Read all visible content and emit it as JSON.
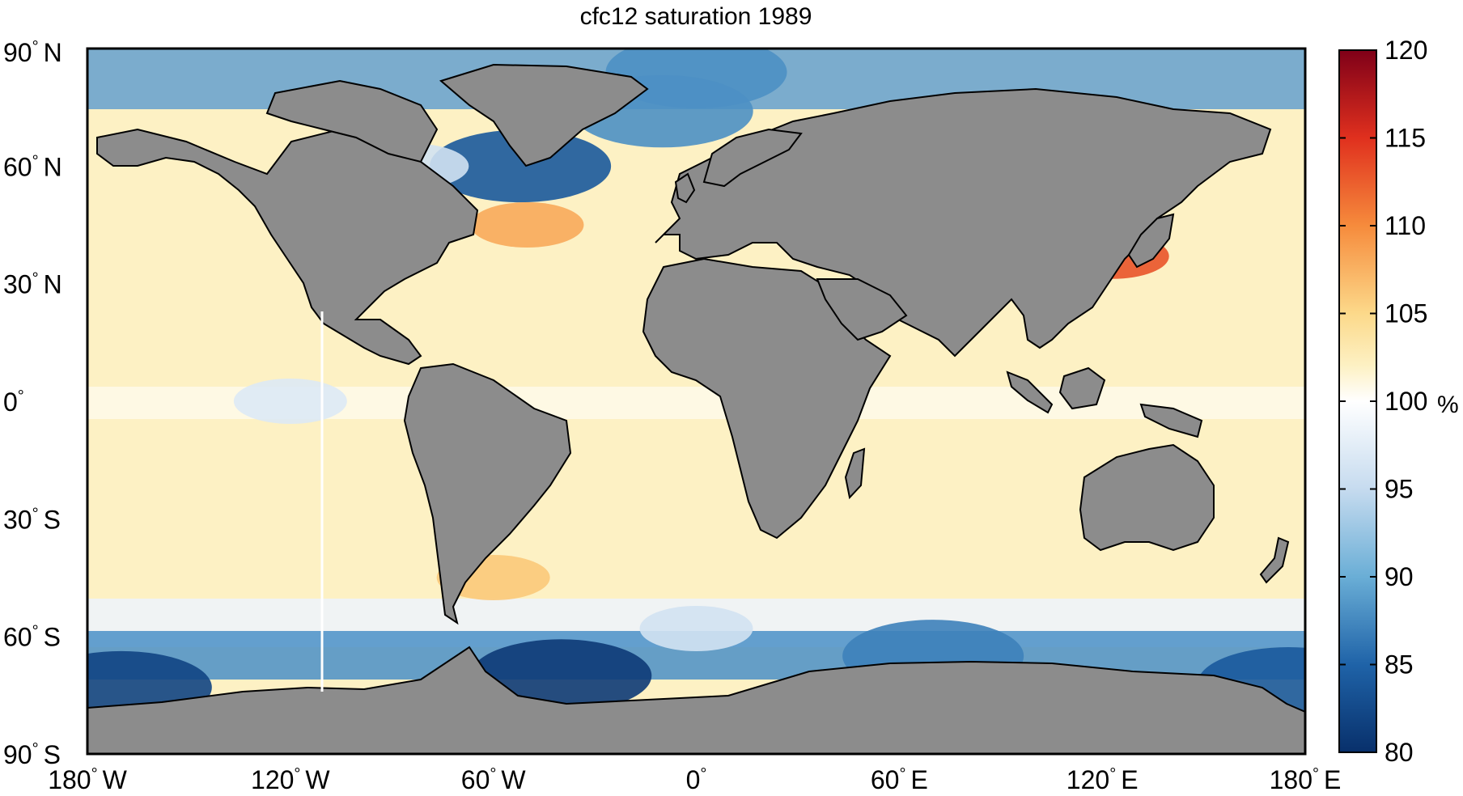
{
  "title": "cfc12 saturation 1989",
  "map": {
    "projection": "equirectangular",
    "lon_range": [
      -180,
      180
    ],
    "lat_range": [
      -90,
      90
    ],
    "variable": "cfc12 saturation",
    "year": "1989",
    "land_color": "#8c8c8c",
    "coastline_color": "#000000"
  },
  "axes": {
    "y_ticks": [
      {
        "deg": "90",
        "hem": "N",
        "lat": 90
      },
      {
        "deg": "60",
        "hem": "N",
        "lat": 60
      },
      {
        "deg": "30",
        "hem": "N",
        "lat": 30
      },
      {
        "deg": "0",
        "hem": "",
        "lat": 0
      },
      {
        "deg": "30",
        "hem": "S",
        "lat": -30
      },
      {
        "deg": "60",
        "hem": "S",
        "lat": -60
      },
      {
        "deg": "90",
        "hem": "S",
        "lat": -90
      }
    ],
    "x_ticks": [
      {
        "deg": "180",
        "hem": "W",
        "lon": -180
      },
      {
        "deg": "120",
        "hem": "W",
        "lon": -120
      },
      {
        "deg": "60",
        "hem": "W",
        "lon": -60
      },
      {
        "deg": "0",
        "hem": "",
        "lon": 0
      },
      {
        "deg": "60",
        "hem": "E",
        "lon": 60
      },
      {
        "deg": "120",
        "hem": "E",
        "lon": 120
      },
      {
        "deg": "180",
        "hem": "E",
        "lon": 180
      }
    ],
    "degree_symbol": "°"
  },
  "colorbar": {
    "unit": "%",
    "min": 80,
    "max": 120,
    "ticks": [
      "80",
      "85",
      "90",
      "95",
      "100",
      "105",
      "110",
      "115",
      "120"
    ],
    "stops": [
      {
        "value": 80,
        "color": "#08306b"
      },
      {
        "value": 85,
        "color": "#1f63a8"
      },
      {
        "value": 90,
        "color": "#6aaed6"
      },
      {
        "value": 95,
        "color": "#c6dbef"
      },
      {
        "value": 100,
        "color": "#ffffff"
      },
      {
        "value": 102,
        "color": "#fdf1c4"
      },
      {
        "value": 105,
        "color": "#fcd98a"
      },
      {
        "value": 110,
        "color": "#f68b3c"
      },
      {
        "value": 115,
        "color": "#e0301e"
      },
      {
        "value": 120,
        "color": "#7f0018"
      }
    ]
  },
  "ocean_field": {
    "default_value": 102,
    "zones": [
      {
        "name": "arctic-ocean",
        "lat": 84,
        "lon": 0,
        "value": 88
      },
      {
        "name": "labrador-sea",
        "lat": 60,
        "lon": -52,
        "value": 84
      },
      {
        "name": "hudson-bay",
        "lat": 60,
        "lon": -84,
        "value": 96
      },
      {
        "name": "greenland-sea",
        "lat": 74,
        "lon": -10,
        "value": 88
      },
      {
        "name": "gulf-stream-north",
        "lat": 45,
        "lon": -50,
        "value": 108
      },
      {
        "name": "yellow-sea",
        "lat": 37,
        "lon": 123,
        "value": 113
      },
      {
        "name": "south-atlantic-shelf",
        "lat": -45,
        "lon": -60,
        "value": 106
      },
      {
        "name": "equatorial-pacific",
        "lat": 0,
        "lon": -120,
        "value": 97
      },
      {
        "name": "southern-ocean-band",
        "lat": -58,
        "lon": 0,
        "value": 96
      },
      {
        "name": "weddell-sea",
        "lat": -70,
        "lon": -40,
        "value": 81
      },
      {
        "name": "ross-sea",
        "lat": -73,
        "lon": -170,
        "value": 82
      },
      {
        "name": "ross-sea-east",
        "lat": -72,
        "lon": 175,
        "value": 84
      },
      {
        "name": "indian-sector-antarctic",
        "lat": -65,
        "lon": 70,
        "value": 87
      }
    ]
  }
}
